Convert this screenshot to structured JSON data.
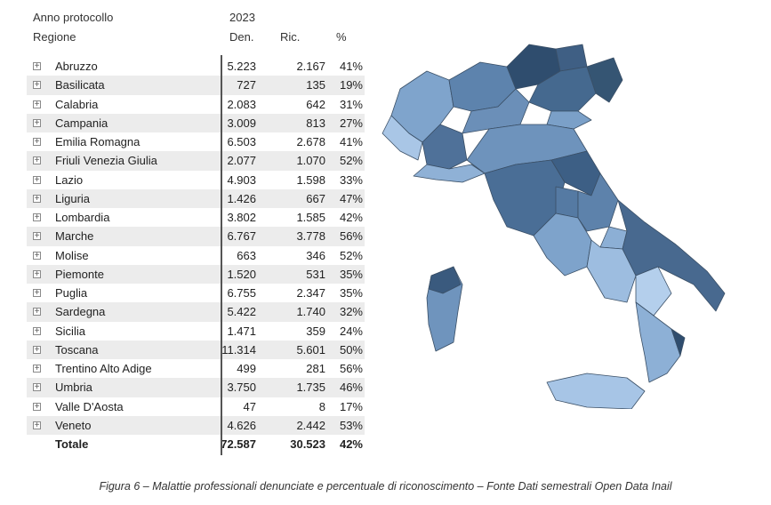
{
  "header": {
    "anno_label": "Anno protocollo",
    "anno_value": "2023",
    "regione_label": "Regione",
    "col_den": "Den.",
    "col_ric": "Ric.",
    "col_pct": "%"
  },
  "rows": [
    {
      "name": "Abruzzo",
      "den": "5.223",
      "ric": "2.167",
      "pct": "41%"
    },
    {
      "name": "Basilicata",
      "den": "727",
      "ric": "135",
      "pct": "19%"
    },
    {
      "name": "Calabria",
      "den": "2.083",
      "ric": "642",
      "pct": "31%"
    },
    {
      "name": "Campania",
      "den": "3.009",
      "ric": "813",
      "pct": "27%"
    },
    {
      "name": "Emilia Romagna",
      "den": "6.503",
      "ric": "2.678",
      "pct": "41%"
    },
    {
      "name": "Friuli Venezia Giulia",
      "den": "2.077",
      "ric": "1.070",
      "pct": "52%"
    },
    {
      "name": "Lazio",
      "den": "4.903",
      "ric": "1.598",
      "pct": "33%"
    },
    {
      "name": "Liguria",
      "den": "1.426",
      "ric": "667",
      "pct": "47%"
    },
    {
      "name": "Lombardia",
      "den": "3.802",
      "ric": "1.585",
      "pct": "42%"
    },
    {
      "name": "Marche",
      "den": "6.767",
      "ric": "3.778",
      "pct": "56%"
    },
    {
      "name": "Molise",
      "den": "663",
      "ric": "346",
      "pct": "52%"
    },
    {
      "name": "Piemonte",
      "den": "1.520",
      "ric": "531",
      "pct": "35%"
    },
    {
      "name": "Puglia",
      "den": "6.755",
      "ric": "2.347",
      "pct": "35%"
    },
    {
      "name": "Sardegna",
      "den": "5.422",
      "ric": "1.740",
      "pct": "32%"
    },
    {
      "name": "Sicilia",
      "den": "1.471",
      "ric": "359",
      "pct": "24%"
    },
    {
      "name": "Toscana",
      "den": "11.314",
      "ric": "5.601",
      "pct": "50%"
    },
    {
      "name": "Trentino Alto Adige",
      "den": "499",
      "ric": "281",
      "pct": "56%"
    },
    {
      "name": "Umbria",
      "den": "3.750",
      "ric": "1.735",
      "pct": "46%"
    },
    {
      "name": "Valle D'Aosta",
      "den": "47",
      "ric": "8",
      "pct": "17%"
    },
    {
      "name": "Veneto",
      "den": "4.626",
      "ric": "2.442",
      "pct": "53%"
    }
  ],
  "total": {
    "name": "Totale",
    "den": "72.587",
    "ric": "30.523",
    "pct": "42%"
  },
  "caption": "Figura 6 – Malattie professionali denunciate e percentuale di riconoscimento – Fonte Dati semestrali Open Data Inail",
  "chart_data": {
    "type": "table",
    "columns": [
      "Regione",
      "Den.",
      "Ric.",
      "%"
    ],
    "map_color_scale": [
      "#c9dcf2",
      "#2e4a66"
    ]
  }
}
